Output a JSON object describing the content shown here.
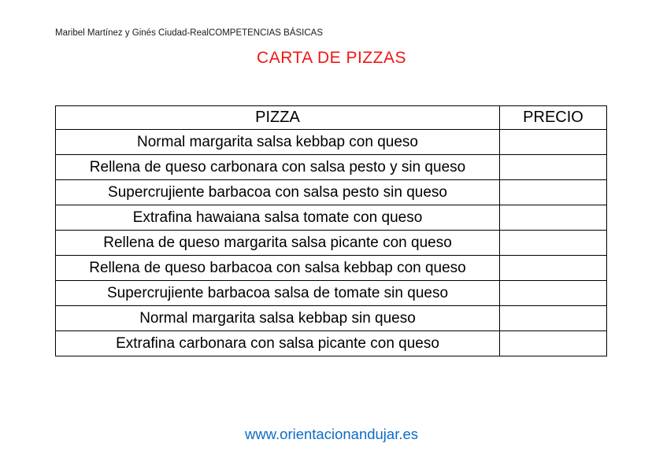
{
  "page": {
    "header_line": "Maribel Martínez y Ginés Ciudad-RealCOMPETENCIAS BÁSICAS",
    "title": "CARTA DE PIZZAS",
    "footer_link": "www.orientacionandujar.es"
  },
  "colors": {
    "title_red": "#f01616",
    "link_blue": "#0f6bc5",
    "table_border": "#000000",
    "background": "#ffffff"
  },
  "table": {
    "headers": {
      "pizza": "PIZZA",
      "precio": "PRECIO"
    },
    "rows": [
      {
        "pizza": "Normal margarita salsa kebbap con queso",
        "precio": ""
      },
      {
        "pizza": "Rellena de queso carbonara con salsa pesto y sin queso",
        "precio": ""
      },
      {
        "pizza": "Supercrujiente barbacoa con salsa pesto sin queso",
        "precio": ""
      },
      {
        "pizza": "Extrafina hawaiana salsa tomate con queso",
        "precio": ""
      },
      {
        "pizza": "Rellena de queso margarita salsa picante con queso",
        "precio": ""
      },
      {
        "pizza": "Rellena de queso barbacoa con salsa kebbap con queso",
        "precio": ""
      },
      {
        "pizza": "Supercrujiente barbacoa salsa de tomate sin queso",
        "precio": ""
      },
      {
        "pizza": "Normal margarita salsa kebbap sin queso",
        "precio": ""
      },
      {
        "pizza": "Extrafina carbonara con salsa picante con queso",
        "precio": ""
      }
    ]
  }
}
